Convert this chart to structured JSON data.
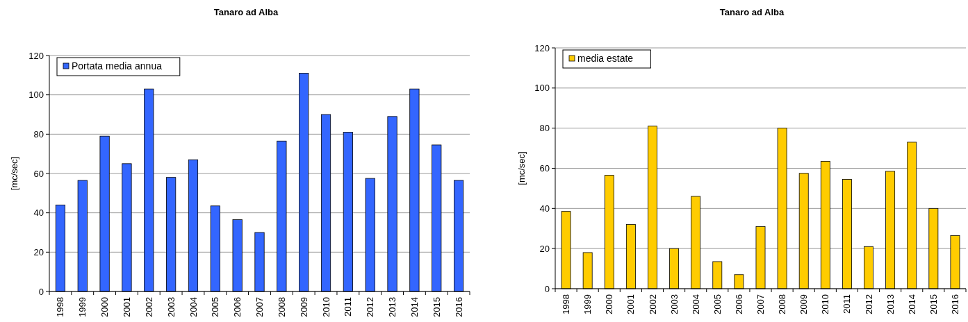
{
  "chart_data": [
    {
      "type": "bar",
      "title": "Tanaro ad Alba",
      "ylabel": "[mc/sec]",
      "categories": [
        "1998",
        "1999",
        "2000",
        "2001",
        "2002",
        "2003",
        "2004",
        "2005",
        "2006",
        "2007",
        "2008",
        "2009",
        "2010",
        "2011",
        "2012",
        "2013",
        "2014",
        "2015",
        "2016"
      ],
      "series": [
        {
          "name": "Portata media annua",
          "color": "#3366ff",
          "values": [
            44,
            56.5,
            79,
            65,
            103,
            58,
            67,
            43.5,
            36.5,
            30,
            76.5,
            111,
            90,
            81,
            57.5,
            89,
            103,
            74.5,
            56.5
          ]
        }
      ],
      "ylim": [
        0,
        120
      ],
      "yticks": [
        0,
        20,
        40,
        60,
        80,
        100,
        120
      ],
      "grid": "y",
      "legend": "top left"
    },
    {
      "type": "bar",
      "title": "Tanaro ad Alba",
      "ylabel": "[mc/sec]",
      "categories": [
        "1998",
        "1999",
        "2000",
        "2001",
        "2002",
        "2003",
        "2004",
        "2005",
        "2006",
        "2007",
        "2008",
        "2009",
        "2010",
        "2011",
        "2012",
        "2013",
        "2014",
        "2015",
        "2016"
      ],
      "series": [
        {
          "name": "media estate",
          "color": "#ffcc00",
          "values": [
            38.5,
            18,
            56.5,
            32,
            81,
            20,
            46,
            13.5,
            7,
            31,
            80,
            57.5,
            63.5,
            54.5,
            21,
            58.5,
            73,
            40,
            26.5
          ]
        }
      ],
      "ylim": [
        0,
        120
      ],
      "yticks": [
        0,
        20,
        40,
        60,
        80,
        100,
        120
      ],
      "grid": "y",
      "legend": "top left"
    }
  ]
}
